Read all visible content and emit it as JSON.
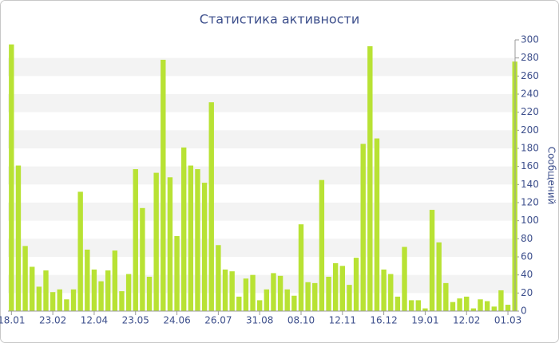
{
  "chart_data": {
    "type": "bar",
    "title": "Статистика активности",
    "y_axis_label": "Сообщений",
    "color": "#b8e234",
    "categories": [
      "18.01",
      null,
      null,
      null,
      null,
      null,
      "23.02",
      null,
      null,
      null,
      null,
      null,
      "12.04",
      null,
      null,
      null,
      null,
      null,
      "23.05",
      null,
      null,
      null,
      null,
      null,
      "24.06",
      null,
      null,
      null,
      null,
      null,
      "26.07",
      null,
      null,
      null,
      null,
      null,
      "31.08",
      null,
      null,
      null,
      null,
      null,
      "08.10",
      null,
      null,
      null,
      null,
      null,
      "12.11",
      null,
      null,
      null,
      null,
      null,
      "16.12",
      null,
      null,
      null,
      null,
      null,
      "19.01",
      null,
      null,
      null,
      null,
      null,
      "12.02",
      null,
      null,
      null,
      null,
      null,
      "01.03",
      null
    ],
    "values": [
      295,
      161,
      72,
      49,
      27,
      45,
      21,
      24,
      13,
      24,
      132,
      68,
      46,
      33,
      45,
      67,
      22,
      41,
      157,
      114,
      38,
      153,
      278,
      148,
      83,
      181,
      161,
      157,
      142,
      231,
      73,
      46,
      44,
      16,
      36,
      40,
      12,
      24,
      42,
      39,
      24,
      17,
      96,
      32,
      31,
      145,
      38,
      53,
      50,
      29,
      59,
      185,
      293,
      191,
      46,
      41,
      16,
      71,
      12,
      12,
      3,
      112,
      76,
      31,
      10,
      14,
      16,
      3,
      13,
      11,
      5,
      23,
      7,
      276
    ],
    "ylim": [
      0,
      300
    ],
    "yticks": [
      0,
      20,
      40,
      60,
      80,
      100,
      120,
      140,
      160,
      180,
      200,
      220,
      240,
      260,
      280,
      300
    ],
    "grid": "bands",
    "y_axis_side": "right"
  }
}
